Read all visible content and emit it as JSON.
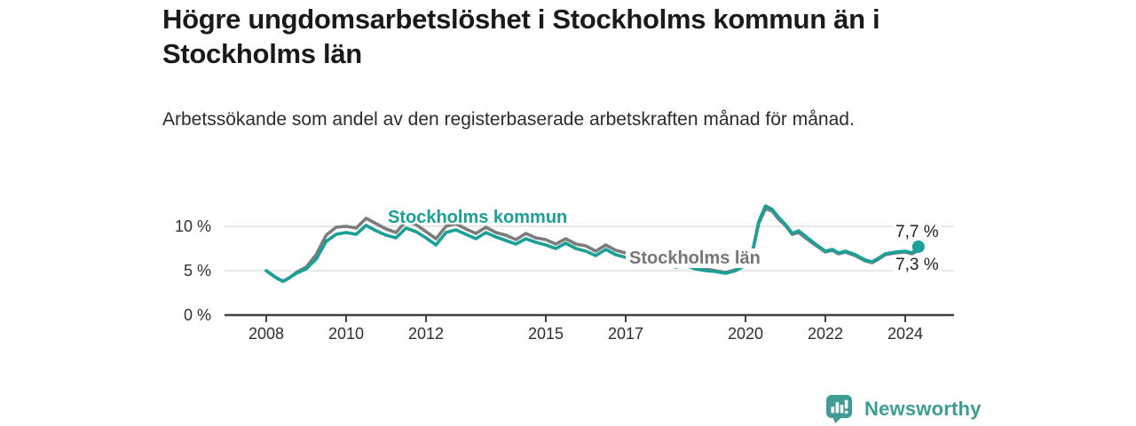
{
  "title": "Högre ungdomsarbetslöshet i Stockholms kommun än i Stockholms län",
  "subtitle": "Arbetssökande som andel av den registerbaserade arbetskraften månad för månad.",
  "labels": {
    "kommun": "Stockholms kommun",
    "lan": "Stockholms län"
  },
  "footer": {
    "brand": "Newsworthy"
  },
  "colors": {
    "kommun_line": "#1aa096",
    "lan_line": "#7b7c7c",
    "kommun_label": "#1aa096",
    "lan_label": "#767676",
    "grid": "#d9d9d9",
    "axis": "#404040",
    "title_text": "#1a1a1a",
    "brand_teal": "#3d9c94"
  },
  "chart_data": {
    "type": "line",
    "title": "Högre ungdomsarbetslöshet i Stockholms kommun än i Stockholms län",
    "subtitle": "Arbetssökande som andel av den registerbaserade arbetskraften månad för månad.",
    "unit": "%",
    "grid": "horizontal",
    "legend_position": "inline-labels",
    "ylim": [
      0,
      12.5
    ],
    "xlim": [
      2007.9,
      2025.2
    ],
    "x": [
      2008.0,
      2008.25,
      2008.42,
      2008.58,
      2008.75,
      2009.0,
      2009.25,
      2009.5,
      2009.75,
      2010.0,
      2010.25,
      2010.5,
      2010.75,
      2011.0,
      2011.25,
      2011.5,
      2011.75,
      2012.0,
      2012.25,
      2012.5,
      2012.75,
      2013.0,
      2013.25,
      2013.5,
      2013.75,
      2014.0,
      2014.25,
      2014.5,
      2014.75,
      2015.0,
      2015.25,
      2015.5,
      2015.75,
      2016.0,
      2016.25,
      2016.5,
      2016.75,
      2017.0,
      2017.25,
      2017.5,
      2017.75,
      2018.0,
      2018.25,
      2018.5,
      2018.75,
      2019.0,
      2019.25,
      2019.5,
      2019.75,
      2020.0,
      2020.17,
      2020.33,
      2020.5,
      2020.67,
      2020.83,
      2021.0,
      2021.17,
      2021.33,
      2021.5,
      2021.75,
      2022.0,
      2022.17,
      2022.33,
      2022.5,
      2022.75,
      2023.0,
      2023.17,
      2023.33,
      2023.5,
      2023.75,
      2024.0,
      2024.17,
      2024.33
    ],
    "series": [
      {
        "name": "Stockholms län",
        "color": "#7b7c7c",
        "values": [
          5.0,
          4.2,
          3.8,
          4.2,
          4.8,
          5.4,
          6.8,
          9.0,
          9.9,
          10.0,
          9.8,
          10.9,
          10.3,
          9.7,
          9.3,
          10.6,
          10.2,
          9.4,
          8.6,
          10.0,
          10.3,
          9.7,
          9.2,
          9.9,
          9.3,
          9.0,
          8.5,
          9.2,
          8.7,
          8.5,
          8.0,
          8.6,
          8.0,
          7.8,
          7.2,
          7.9,
          7.3,
          7.0,
          6.8,
          7.0,
          6.6,
          6.1,
          5.7,
          5.9,
          5.5,
          5.2,
          5.0,
          4.8,
          5.1,
          5.7,
          7.0,
          10.3,
          12.0,
          11.7,
          10.8,
          10.1,
          9.1,
          9.3,
          8.7,
          7.9,
          7.1,
          7.3,
          6.9,
          7.1,
          6.7,
          6.1,
          5.9,
          6.3,
          6.8,
          7.0,
          7.1,
          6.9,
          7.3
        ]
      },
      {
        "name": "Stockholms kommun",
        "color": "#1aa096",
        "values": [
          5.0,
          4.2,
          3.8,
          4.2,
          4.7,
          5.2,
          6.3,
          8.3,
          9.1,
          9.3,
          9.1,
          10.1,
          9.5,
          9.0,
          8.7,
          9.8,
          9.4,
          8.7,
          7.9,
          9.3,
          9.6,
          9.1,
          8.6,
          9.3,
          8.8,
          8.4,
          8.0,
          8.6,
          8.2,
          7.9,
          7.5,
          8.1,
          7.5,
          7.2,
          6.7,
          7.4,
          6.8,
          6.5,
          6.3,
          6.5,
          6.1,
          5.8,
          5.4,
          5.6,
          5.2,
          5.0,
          4.9,
          4.7,
          5.0,
          5.6,
          7.0,
          10.5,
          12.3,
          11.9,
          11.0,
          10.2,
          9.2,
          9.5,
          8.9,
          8.0,
          7.2,
          7.4,
          7.0,
          7.2,
          6.8,
          6.2,
          6.0,
          6.4,
          6.9,
          7.1,
          7.2,
          7.0,
          7.7
        ]
      }
    ],
    "y_ticks": [
      {
        "value": 0,
        "label": "0 %"
      },
      {
        "value": 5,
        "label": "5 %"
      },
      {
        "value": 10,
        "label": "10 %"
      }
    ],
    "x_ticks": [
      {
        "year": 2008,
        "label": "2008"
      },
      {
        "year": 2010,
        "label": "2010"
      },
      {
        "year": 2012,
        "label": "2012"
      },
      {
        "year": 2015,
        "label": "2015"
      },
      {
        "year": 2017,
        "label": "2017"
      },
      {
        "year": 2020,
        "label": "2020"
      },
      {
        "year": 2022,
        "label": "2022"
      },
      {
        "year": 2024,
        "label": "2024"
      }
    ],
    "end_labels": {
      "kommun": "7,7 %",
      "lan": "7,3 %"
    }
  }
}
